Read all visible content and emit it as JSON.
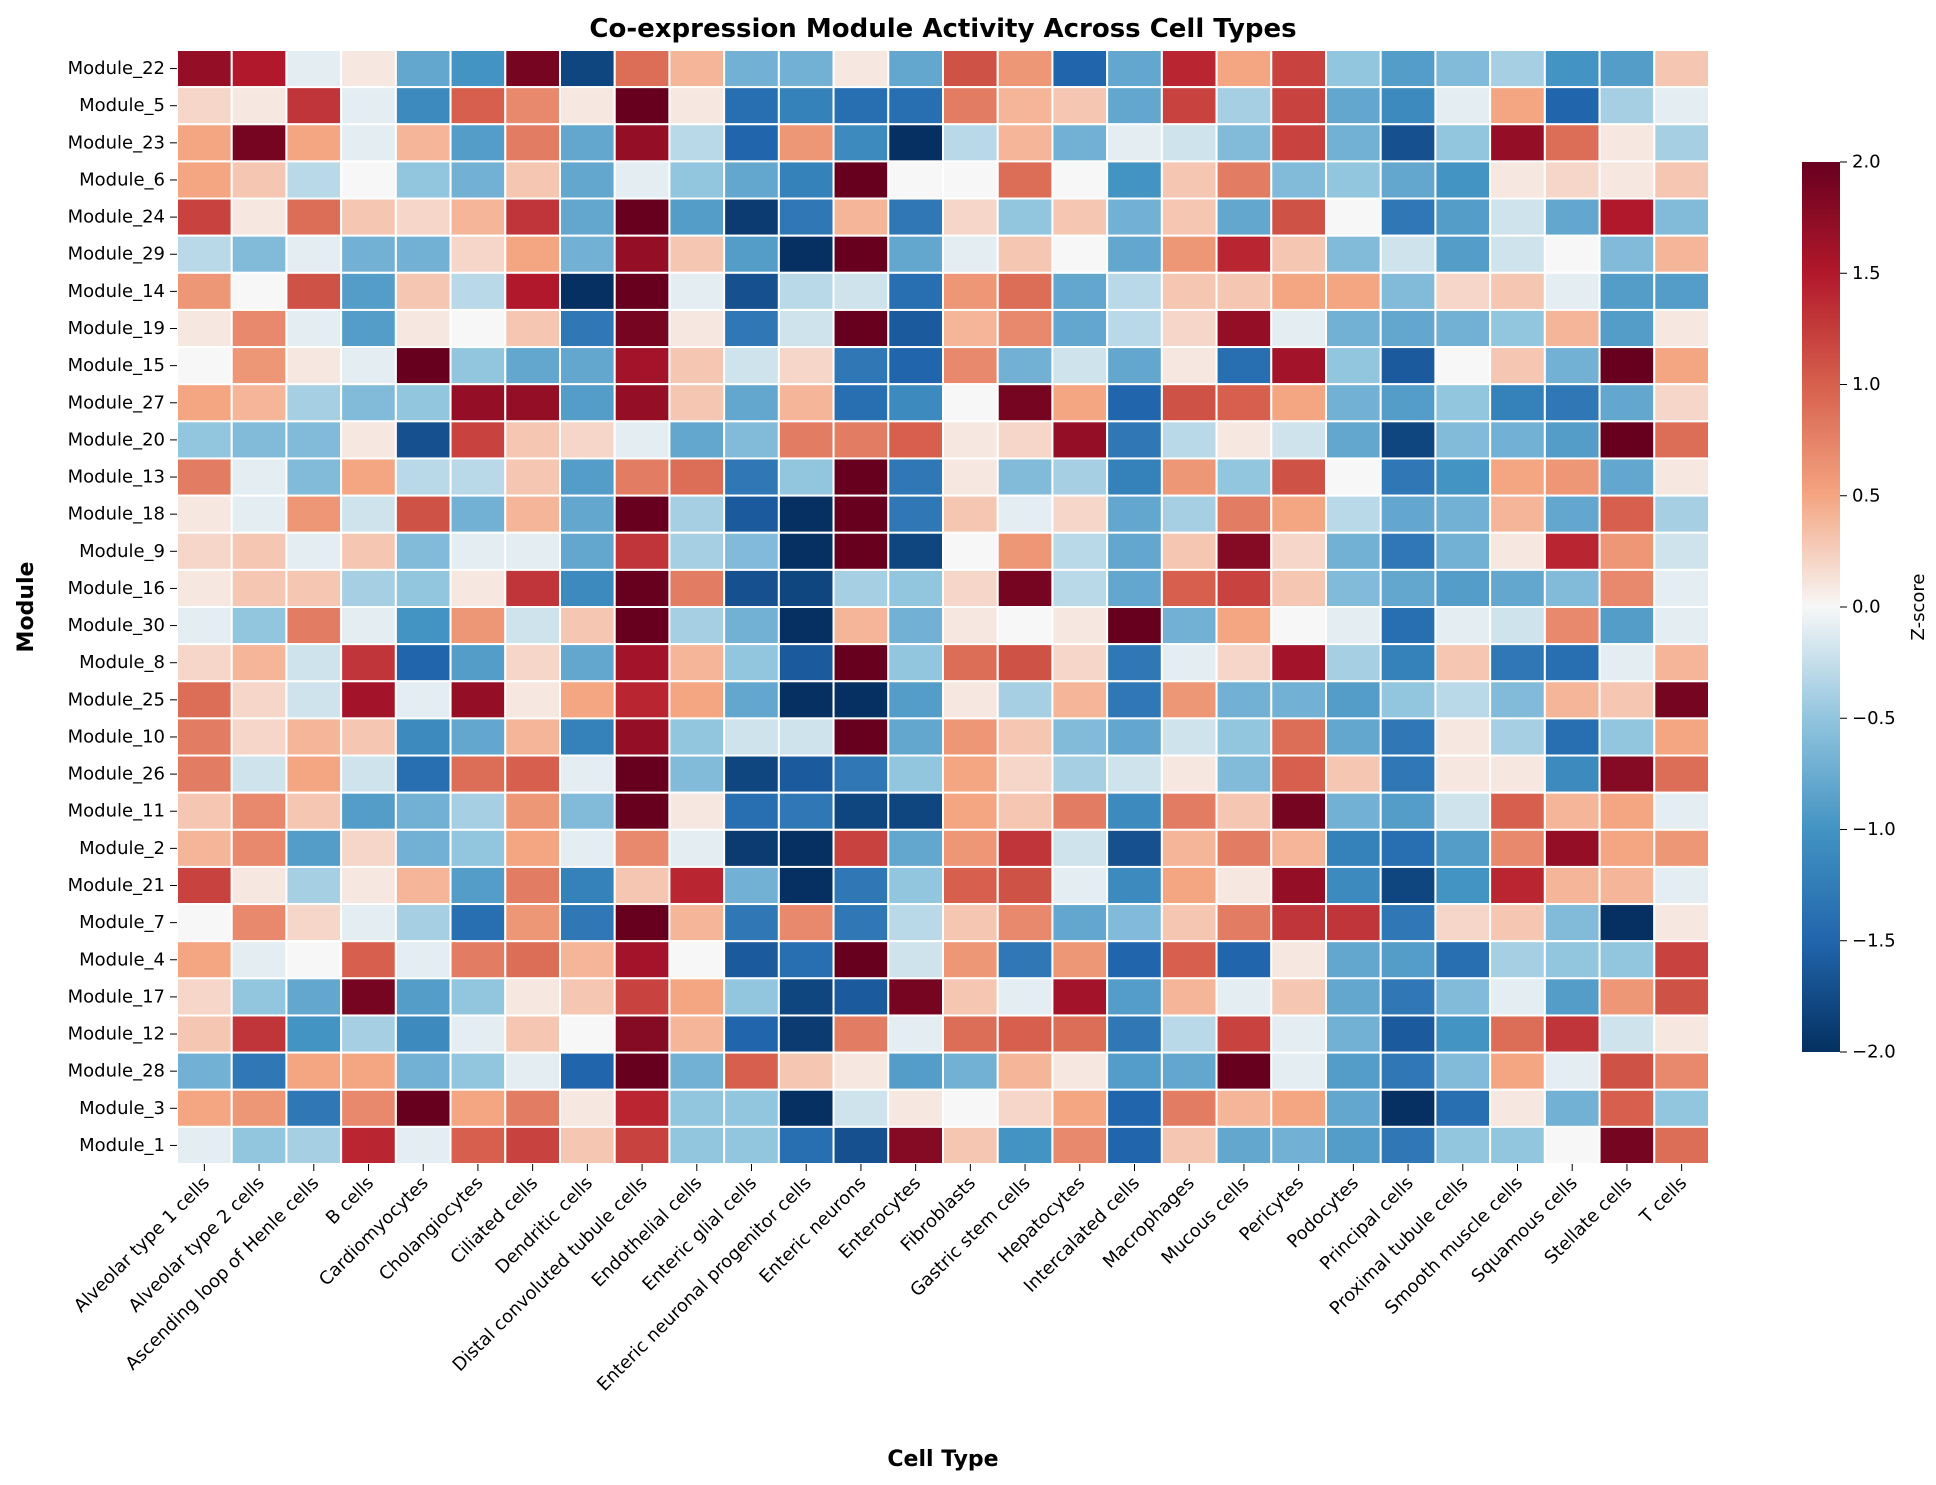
{
  "chart_data": {
    "type": "heatmap",
    "title": "Co-expression Module Activity Across Cell Types",
    "xlabel": "Cell Type",
    "ylabel": "Module",
    "colorbar_label": "Z-score",
    "vmin": -2.0,
    "vmax": 2.0,
    "colorbar_ticks": [
      "2.0",
      "1.5",
      "1.0",
      "0.5",
      "0.0",
      "−0.5",
      "−1.0",
      "−1.5",
      "−2.0"
    ],
    "colorbar_tick_values": [
      2.0,
      1.5,
      1.0,
      0.5,
      0.0,
      -0.5,
      -1.0,
      -1.5,
      -2.0
    ],
    "colormap": "RdBu_r",
    "columns": [
      "Alveolar type 1 cells",
      "Alveolar type 2 cells",
      "Ascending loop of Henle cells",
      "B cells",
      "Cardiomyocytes",
      "Cholangiocytes",
      "Ciliated cells",
      "Dendritic cells",
      "Distal convoluted tubule cells",
      "Endothelial cells",
      "Enteric glial cells",
      "Enteric neuronal progenitor cells",
      "Enteric neurons",
      "Enterocytes",
      "Fibroblasts",
      "Gastric stem cells",
      "Hepatocytes",
      "Intercalated cells",
      "Macrophages",
      "Mucous cells",
      "Pericytes",
      "Podocytes",
      "Principal cells",
      "Proximal tubule cells",
      "Smooth muscle cells",
      "Squamous cells",
      "Stellate cells",
      "T cells"
    ],
    "rows": [
      "Module_22",
      "Module_5",
      "Module_23",
      "Module_6",
      "Module_24",
      "Module_29",
      "Module_14",
      "Module_19",
      "Module_15",
      "Module_27",
      "Module_20",
      "Module_13",
      "Module_18",
      "Module_9",
      "Module_16",
      "Module_30",
      "Module_8",
      "Module_25",
      "Module_10",
      "Module_26",
      "Module_11",
      "Module_2",
      "Module_21",
      "Module_7",
      "Module_4",
      "Module_17",
      "Module_12",
      "Module_28",
      "Module_3",
      "Module_1"
    ],
    "values": [
      [
        1.7,
        1.5,
        -0.1,
        0.1,
        -0.8,
        -1.0,
        1.9,
        -1.8,
        0.9,
        0.4,
        -0.7,
        -0.7,
        0.1,
        -0.8,
        1.1,
        0.6,
        -1.5,
        -0.8,
        1.4,
        0.5,
        1.2,
        -0.5,
        -0.9,
        -0.6,
        -0.4,
        -1.0,
        -0.9,
        0.3
      ],
      [
        0.2,
        0.1,
        1.3,
        -0.1,
        -1.1,
        1.0,
        0.7,
        0.1,
        2.0,
        0.1,
        -1.4,
        -1.2,
        -1.4,
        -1.4,
        0.8,
        0.4,
        0.3,
        -0.8,
        1.2,
        -0.4,
        1.2,
        -0.8,
        -1.1,
        -0.1,
        0.5,
        -1.5,
        -0.4,
        -0.1
      ],
      [
        0.5,
        1.9,
        0.5,
        -0.1,
        0.4,
        -0.9,
        0.8,
        -0.8,
        1.7,
        -0.3,
        -1.5,
        0.6,
        -1.1,
        -2.0,
        -0.3,
        0.4,
        -0.7,
        -0.1,
        -0.2,
        -0.6,
        1.2,
        -0.7,
        -1.7,
        -0.5,
        1.7,
        0.9,
        0.1,
        -0.4
      ],
      [
        0.5,
        0.3,
        -0.3,
        0.0,
        -0.5,
        -0.7,
        0.3,
        -0.8,
        -0.1,
        -0.5,
        -0.8,
        -1.2,
        2.0,
        0.0,
        0.0,
        0.9,
        0.0,
        -1.0,
        0.3,
        0.8,
        -0.6,
        -0.5,
        -0.8,
        -1.0,
        0.1,
        0.2,
        0.1,
        0.3
      ],
      [
        1.2,
        0.1,
        0.9,
        0.3,
        0.2,
        0.4,
        1.3,
        -0.8,
        2.0,
        -0.9,
        -1.9,
        -1.3,
        0.4,
        -1.3,
        0.2,
        -0.5,
        0.3,
        -0.7,
        0.3,
        -0.8,
        1.1,
        0.0,
        -1.3,
        -0.9,
        -0.2,
        -0.8,
        1.5,
        -0.6
      ],
      [
        -0.3,
        -0.6,
        -0.1,
        -0.7,
        -0.7,
        0.2,
        0.5,
        -0.7,
        1.7,
        0.3,
        -0.9,
        -2.0,
        2.0,
        -0.8,
        -0.1,
        0.3,
        0.0,
        -0.8,
        0.6,
        1.4,
        0.3,
        -0.6,
        -0.2,
        -0.9,
        -0.2,
        0.0,
        -0.6,
        0.4
      ],
      [
        0.6,
        0.0,
        1.1,
        -0.9,
        0.3,
        -0.3,
        1.5,
        -2.0,
        2.0,
        -0.1,
        -1.7,
        -0.3,
        -0.2,
        -1.4,
        0.6,
        0.9,
        -0.8,
        -0.3,
        0.3,
        0.3,
        0.5,
        0.5,
        -0.6,
        0.2,
        0.3,
        -0.1,
        -0.9,
        -0.9
      ],
      [
        0.1,
        0.7,
        -0.1,
        -0.9,
        0.1,
        0.0,
        0.3,
        -1.3,
        1.9,
        0.1,
        -1.3,
        -0.2,
        2.0,
        -1.6,
        0.4,
        0.7,
        -0.8,
        -0.3,
        0.2,
        1.7,
        -0.1,
        -0.7,
        -0.8,
        -0.7,
        -0.5,
        0.4,
        -0.9,
        0.1
      ],
      [
        0.0,
        0.6,
        0.1,
        -0.1,
        2.0,
        -0.5,
        -0.8,
        -0.8,
        1.6,
        0.3,
        -0.2,
        0.2,
        -1.3,
        -1.5,
        0.7,
        -0.7,
        -0.2,
        -0.8,
        0.1,
        -1.4,
        1.6,
        -0.5,
        -1.6,
        0.0,
        0.3,
        -0.7,
        2.0,
        0.5
      ],
      [
        0.5,
        0.4,
        -0.4,
        -0.6,
        -0.5,
        1.7,
        1.7,
        -0.9,
        1.7,
        0.3,
        -0.8,
        0.4,
        -1.4,
        -1.1,
        0.0,
        1.9,
        0.5,
        -1.5,
        1.1,
        1.0,
        0.5,
        -0.7,
        -0.9,
        -0.5,
        -1.2,
        -1.3,
        -0.8,
        0.2
      ],
      [
        -0.5,
        -0.6,
        -0.6,
        0.1,
        -1.7,
        1.2,
        0.3,
        0.2,
        -0.1,
        -0.8,
        -0.6,
        0.8,
        0.8,
        1.0,
        0.1,
        0.2,
        1.7,
        -1.3,
        -0.3,
        0.1,
        -0.2,
        -0.8,
        -1.8,
        -0.6,
        -0.7,
        -0.9,
        2.0,
        0.9
      ],
      [
        0.8,
        -0.1,
        -0.6,
        0.5,
        -0.3,
        -0.3,
        0.3,
        -0.9,
        0.8,
        0.9,
        -1.3,
        -0.5,
        2.0,
        -1.3,
        0.1,
        -0.6,
        -0.4,
        -1.2,
        0.6,
        -0.5,
        1.1,
        0.0,
        -1.3,
        -1.0,
        0.5,
        0.6,
        -0.8,
        0.1
      ],
      [
        0.1,
        -0.1,
        0.6,
        -0.2,
        1.1,
        -0.7,
        0.4,
        -0.8,
        2.0,
        -0.4,
        -1.6,
        -2.0,
        2.0,
        -1.3,
        0.3,
        -0.1,
        0.2,
        -0.8,
        -0.4,
        0.8,
        0.5,
        -0.3,
        -0.8,
        -0.7,
        0.4,
        -0.8,
        1.0,
        -0.4
      ],
      [
        0.2,
        0.3,
        -0.1,
        0.3,
        -0.6,
        -0.1,
        -0.1,
        -0.8,
        1.3,
        -0.4,
        -0.6,
        -2.0,
        2.0,
        -1.8,
        0.0,
        0.6,
        -0.3,
        -0.8,
        0.3,
        1.8,
        0.2,
        -0.7,
        -1.3,
        -0.7,
        0.1,
        1.4,
        0.6,
        -0.2
      ],
      [
        0.1,
        0.3,
        0.3,
        -0.4,
        -0.5,
        0.1,
        1.3,
        -1.1,
        2.0,
        0.8,
        -1.7,
        -1.8,
        -0.4,
        -0.5,
        0.2,
        1.9,
        -0.3,
        -0.8,
        1.0,
        1.2,
        0.3,
        -0.6,
        -0.8,
        -0.9,
        -0.8,
        -0.6,
        0.7,
        -0.1
      ],
      [
        -0.1,
        -0.5,
        0.8,
        -0.1,
        -1.0,
        0.6,
        -0.2,
        0.3,
        2.0,
        -0.4,
        -0.7,
        -2.0,
        0.4,
        -0.7,
        0.1,
        0.0,
        0.1,
        2.0,
        -0.7,
        0.5,
        0.0,
        -0.1,
        -1.4,
        -0.1,
        -0.2,
        0.7,
        -0.9,
        -0.1
      ],
      [
        0.2,
        0.4,
        -0.2,
        1.3,
        -1.5,
        -0.9,
        0.2,
        -0.8,
        1.6,
        0.4,
        -0.5,
        -1.6,
        2.0,
        -0.5,
        0.9,
        1.1,
        0.2,
        -1.3,
        -0.1,
        0.2,
        1.6,
        -0.4,
        -1.2,
        0.3,
        -1.3,
        -1.4,
        -0.1,
        0.4
      ],
      [
        0.9,
        0.2,
        -0.2,
        1.6,
        -0.1,
        1.7,
        0.1,
        0.5,
        1.4,
        0.5,
        -0.8,
        -2.0,
        -2.0,
        -0.9,
        0.1,
        -0.4,
        0.4,
        -1.3,
        0.6,
        -0.7,
        -0.7,
        -0.9,
        -0.5,
        -0.3,
        -0.6,
        0.4,
        0.3,
        1.9
      ],
      [
        0.8,
        0.2,
        0.4,
        0.3,
        -1.1,
        -0.8,
        0.4,
        -1.2,
        1.7,
        -0.5,
        -0.2,
        -0.2,
        2.0,
        -0.8,
        0.6,
        0.3,
        -0.6,
        -0.8,
        -0.2,
        -0.5,
        0.9,
        -0.8,
        -1.3,
        0.1,
        -0.4,
        -1.4,
        -0.5,
        0.5
      ],
      [
        0.8,
        -0.2,
        0.5,
        -0.2,
        -1.4,
        0.9,
        1.0,
        -0.1,
        2.0,
        -0.6,
        -1.8,
        -1.6,
        -1.3,
        -0.5,
        0.5,
        0.2,
        -0.4,
        -0.2,
        0.1,
        -0.6,
        1.0,
        0.3,
        -1.3,
        0.1,
        0.1,
        -1.1,
        1.8,
        0.9
      ],
      [
        0.3,
        0.7,
        0.3,
        -0.9,
        -0.7,
        -0.4,
        0.6,
        -0.6,
        2.0,
        0.1,
        -1.4,
        -1.3,
        -1.8,
        -1.8,
        0.5,
        0.3,
        0.8,
        -1.1,
        0.8,
        0.3,
        1.9,
        -0.7,
        -0.9,
        -0.2,
        1.0,
        0.4,
        0.5,
        -0.1
      ],
      [
        0.4,
        0.7,
        -0.9,
        0.2,
        -0.7,
        -0.5,
        0.5,
        -0.1,
        0.7,
        -0.1,
        -1.9,
        -2.0,
        1.2,
        -0.8,
        0.6,
        1.3,
        -0.2,
        -1.7,
        0.4,
        0.8,
        0.4,
        -1.2,
        -1.4,
        -0.9,
        0.7,
        1.7,
        0.5,
        0.6
      ],
      [
        1.2,
        0.1,
        -0.4,
        0.1,
        0.4,
        -0.9,
        0.8,
        -1.2,
        0.3,
        1.4,
        -0.7,
        -2.0,
        -1.3,
        -0.5,
        1.0,
        1.1,
        -0.1,
        -1.1,
        0.5,
        0.1,
        1.7,
        -1.1,
        -1.8,
        -1.0,
        1.4,
        0.4,
        0.4,
        -0.1
      ],
      [
        0.0,
        0.7,
        0.2,
        -0.1,
        -0.4,
        -1.4,
        0.6,
        -1.3,
        2.0,
        0.4,
        -1.3,
        0.7,
        -1.3,
        -0.3,
        0.3,
        0.7,
        -0.8,
        -0.6,
        0.3,
        0.8,
        1.3,
        1.3,
        -1.3,
        0.2,
        0.3,
        -0.6,
        -2.0,
        0.1
      ],
      [
        0.5,
        -0.1,
        0.0,
        1.0,
        -0.1,
        0.8,
        0.9,
        0.4,
        1.6,
        0.0,
        -1.6,
        -1.4,
        2.0,
        -0.2,
        0.6,
        -1.3,
        0.6,
        -1.5,
        1.0,
        -1.5,
        0.1,
        -0.8,
        -0.9,
        -1.4,
        -0.4,
        -0.5,
        -0.5,
        1.2
      ],
      [
        0.2,
        -0.5,
        -0.8,
        1.9,
        -0.9,
        -0.5,
        0.1,
        0.3,
        1.2,
        0.5,
        -0.5,
        -1.8,
        -1.6,
        1.9,
        0.3,
        -0.1,
        1.6,
        -0.9,
        0.4,
        -0.1,
        0.3,
        -0.8,
        -1.3,
        -0.6,
        -0.1,
        -0.9,
        0.6,
        1.1
      ],
      [
        0.3,
        1.3,
        -1.0,
        -0.4,
        -1.1,
        -0.1,
        0.3,
        0.0,
        1.8,
        0.4,
        -1.5,
        -1.9,
        0.8,
        -0.1,
        0.9,
        1.0,
        0.9,
        -1.3,
        -0.3,
        1.2,
        -0.1,
        -0.7,
        -1.6,
        -1.0,
        0.9,
        1.3,
        -0.2,
        0.1
      ],
      [
        -0.7,
        -1.3,
        0.5,
        0.5,
        -0.7,
        -0.5,
        -0.1,
        -1.5,
        2.0,
        -0.7,
        1.0,
        0.3,
        0.1,
        -0.9,
        -0.7,
        0.4,
        0.1,
        -0.9,
        -0.8,
        2.0,
        -0.1,
        -0.9,
        -1.3,
        -0.6,
        0.5,
        -0.1,
        1.1,
        0.7
      ],
      [
        0.5,
        0.6,
        -1.3,
        0.7,
        2.0,
        0.5,
        0.8,
        0.1,
        1.4,
        -0.5,
        -0.5,
        -2.0,
        -0.2,
        0.1,
        0.0,
        0.2,
        0.5,
        -1.5,
        0.8,
        0.4,
        0.5,
        -0.8,
        -2.0,
        -1.4,
        0.1,
        -0.7,
        1.0,
        -0.5
      ],
      [
        -0.1,
        -0.5,
        -0.4,
        1.4,
        -0.1,
        1.0,
        1.2,
        0.3,
        1.2,
        -0.5,
        -0.5,
        -1.4,
        -1.7,
        1.8,
        0.3,
        -1.0,
        0.7,
        -1.5,
        0.3,
        -0.8,
        -0.7,
        -0.9,
        -1.3,
        -0.5,
        -0.5,
        0.0,
        1.9,
        0.9
      ]
    ]
  }
}
